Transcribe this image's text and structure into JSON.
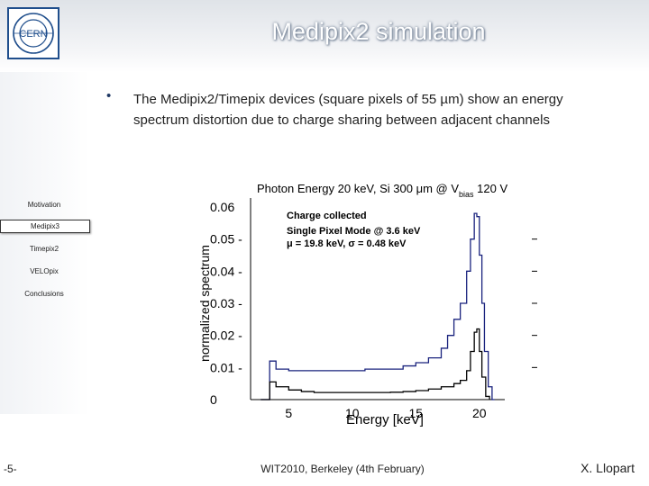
{
  "header": {
    "title": "Medipix2 simulation",
    "logo_text": "CERN"
  },
  "sidebar": {
    "items": [
      {
        "label": "Motivation",
        "active": false
      },
      {
        "label": "Medipix3",
        "active": true
      },
      {
        "label": "Timepix2",
        "active": false
      },
      {
        "label": "VELOpix",
        "active": false
      },
      {
        "label": "Conclusions",
        "active": false
      }
    ]
  },
  "content": {
    "bullet_symbol": "•",
    "bullet_text": "The Medipix2/Timepix devices (square pixels of 55 µm) show an energy spectrum distortion due to charge sharing between adjacent channels"
  },
  "chart_data": {
    "type": "line",
    "title": "Photon Energy 20 keV, Si 300 μm @ V",
    "title_subscript": "bias",
    "title_suffix": " 120 V",
    "xlabel": "Energy [keV]",
    "ylabel": "normalized spectrum",
    "xlim": [
      2,
      22
    ],
    "ylim": [
      0,
      0.06
    ],
    "xticks": [
      "5",
      "10",
      "15",
      "20"
    ],
    "yticks": [
      "0",
      "0.01 -",
      "0.02 -",
      "0.03 -",
      "0.04 -",
      "0.05 -",
      "0.06"
    ],
    "annotations": [
      "Charge collected",
      "Single Pixel Mode @ 3.6 keV",
      "μ = 19.8 keV, σ = 0.48 keV"
    ],
    "series": [
      {
        "color": "#1a237e",
        "x": [
          2.8,
          3.5,
          4.0,
          5.0,
          6.0,
          7.0,
          8.0,
          9.0,
          10.0,
          11.0,
          12.0,
          13.0,
          14.0,
          15.0,
          16.0,
          17.0,
          17.5,
          18.0,
          18.5,
          19.0,
          19.3,
          19.6,
          19.8,
          20.0,
          20.2,
          20.4,
          20.7,
          21.0,
          21.2
        ],
        "y": [
          0.0,
          0.012,
          0.0095,
          0.009,
          0.009,
          0.009,
          0.009,
          0.009,
          0.009,
          0.0095,
          0.0095,
          0.0095,
          0.0105,
          0.0115,
          0.013,
          0.016,
          0.02,
          0.025,
          0.03,
          0.04,
          0.05,
          0.058,
          0.057,
          0.045,
          0.03,
          0.015,
          0.004,
          0.0,
          0.0
        ]
      },
      {
        "color": "#000000",
        "x": [
          2.8,
          3.5,
          4.0,
          5.0,
          6.0,
          7.0,
          8.0,
          9.0,
          10.0,
          11.0,
          12.0,
          13.0,
          14.0,
          15.0,
          16.0,
          17.0,
          18.0,
          18.5,
          19.0,
          19.3,
          19.6,
          19.8,
          20.0,
          20.2,
          20.5,
          20.8
        ],
        "y": [
          0.0,
          0.0055,
          0.004,
          0.003,
          0.0025,
          0.0022,
          0.0022,
          0.0022,
          0.0022,
          0.0022,
          0.0022,
          0.0023,
          0.0025,
          0.0028,
          0.0033,
          0.004,
          0.005,
          0.006,
          0.009,
          0.015,
          0.021,
          0.022,
          0.015,
          0.007,
          0.001,
          0.0
        ]
      }
    ]
  },
  "footer": {
    "page": "-5-",
    "center": "WIT2010, Berkeley (4th February)",
    "author": "X. Llopart"
  }
}
